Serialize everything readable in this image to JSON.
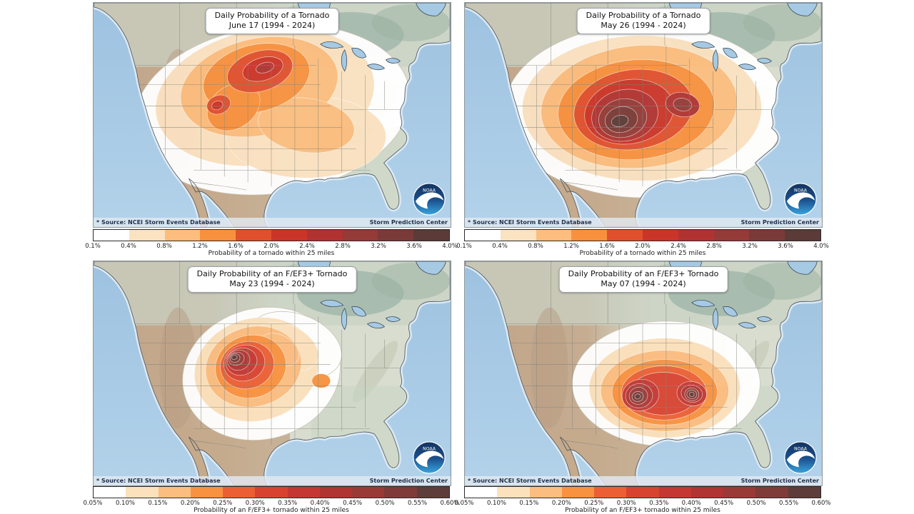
{
  "page": {
    "background": "#ffffff"
  },
  "logo": {
    "label": "NOAA"
  },
  "footer": {
    "source": "* Source: NCEI Storm Events Database",
    "credit": "Storm Prediction Center"
  },
  "colorbars": {
    "tornado": {
      "caption": "Probability of a tornado within 25 miles",
      "ticks": [
        "0.1%",
        "0.4%",
        "0.8%",
        "1.2%",
        "1.6%",
        "2.0%",
        "2.4%",
        "2.8%",
        "3.2%",
        "3.6%",
        "4.0%"
      ],
      "colors": [
        "#ffffff",
        "#fbe2c1",
        "#fcbd7e",
        "#f8913e",
        "#e1502d",
        "#cb3428",
        "#b03331",
        "#943a37",
        "#7a3a37",
        "#5b3b37"
      ]
    },
    "ef3": {
      "caption": "Probability of an F/EF3+ tornado within 25 miles",
      "ticks": [
        "0.05%",
        "0.10%",
        "0.15%",
        "0.20%",
        "0.25%",
        "0.30%",
        "0.35%",
        "0.40%",
        "0.45%",
        "0.50%",
        "0.55%",
        "0.60%"
      ],
      "colors": [
        "#ffffff",
        "#fce1bd",
        "#fcbd80",
        "#f99240",
        "#ec5f35",
        "#d84330",
        "#c43732",
        "#b03432",
        "#993a37",
        "#7e3b38",
        "#5e3c39"
      ]
    }
  },
  "maps": [
    {
      "title_line1": "Daily Probability of a Tornado",
      "title_line2": "June 17 (1994 - 2024)",
      "colorbar": "tornado",
      "contours": [
        [
          0,
          250,
          150,
          195,
          118,
          -8
        ],
        [
          1,
          240,
          132,
          155,
          95,
          -10
        ],
        [
          1,
          298,
          188,
          112,
          58,
          0
        ],
        [
          2,
          232,
          118,
          112,
          68,
          -12
        ],
        [
          2,
          298,
          172,
          68,
          38,
          8
        ],
        [
          3,
          228,
          106,
          76,
          47,
          -14
        ],
        [
          3,
          196,
          146,
          40,
          30,
          -35
        ],
        [
          4,
          233,
          96,
          47,
          28,
          -16
        ],
        [
          4,
          175,
          143,
          17,
          13,
          -20
        ],
        [
          5,
          237,
          93,
          29,
          16,
          -16
        ],
        [
          5,
          173,
          144,
          8,
          6,
          -20
        ],
        [
          6,
          240,
          91,
          13,
          7,
          -16
        ]
      ]
    },
    {
      "title_line1": "Daily Probability of a Tornado",
      "title_line2": "May 26 (1994 - 2024)",
      "colorbar": "tornado",
      "contours": [
        [
          0,
          252,
          152,
          198,
          122,
          0
        ],
        [
          1,
          248,
          148,
          168,
          102,
          0
        ],
        [
          2,
          244,
          146,
          138,
          86,
          -5
        ],
        [
          3,
          240,
          150,
          110,
          70,
          -5
        ],
        [
          4,
          236,
          150,
          84,
          56,
          -8
        ],
        [
          5,
          230,
          153,
          63,
          45,
          -10
        ],
        [
          6,
          224,
          158,
          47,
          36,
          -12
        ],
        [
          6,
          305,
          143,
          24,
          17,
          10
        ],
        [
          7,
          221,
          162,
          34,
          27,
          -12
        ],
        [
          7,
          305,
          143,
          13,
          9,
          10
        ],
        [
          8,
          219,
          164,
          23,
          18,
          -12
        ],
        [
          9,
          217,
          166,
          12,
          8,
          -12
        ]
      ]
    },
    {
      "title_line1": "Daily Probability of an F/EF3+ Tornado",
      "title_line2": "May 23 (1994 - 2024)",
      "colorbar": "ef3",
      "contours": [
        [
          0,
          235,
          158,
          112,
          92,
          -15
        ],
        [
          0,
          282,
          118,
          68,
          44,
          20
        ],
        [
          1,
          228,
          152,
          88,
          72,
          -15
        ],
        [
          1,
          270,
          120,
          48,
          30,
          25
        ],
        [
          2,
          224,
          148,
          68,
          56,
          -15
        ],
        [
          2,
          260,
          124,
          30,
          20,
          30
        ],
        [
          3,
          220,
          148,
          50,
          44,
          -15
        ],
        [
          3,
          319,
          168,
          13,
          10,
          0
        ],
        [
          4,
          215,
          146,
          38,
          33,
          -15
        ],
        [
          5,
          211,
          143,
          29,
          25,
          -15
        ],
        [
          6,
          207,
          141,
          22,
          19,
          -15
        ],
        [
          7,
          203,
          139,
          16,
          14,
          -15
        ],
        [
          8,
          200,
          137,
          11,
          9,
          -15
        ],
        [
          9,
          198,
          136,
          7,
          6,
          -15
        ],
        [
          10,
          197,
          135,
          4,
          3,
          -15
        ]
      ]
    },
    {
      "title_line1": "Daily Probability of an F/EF3+ Tornado",
      "title_line2": "May 07 (1994 - 2024)",
      "colorbar": "ef3",
      "contours": [
        [
          0,
          282,
          172,
          132,
          88,
          0
        ],
        [
          1,
          280,
          178,
          106,
          70,
          0
        ],
        [
          2,
          280,
          182,
          90,
          57,
          0
        ],
        [
          3,
          280,
          184,
          74,
          46,
          0
        ],
        [
          4,
          279,
          185,
          60,
          38,
          0
        ],
        [
          5,
          278,
          186,
          48,
          30,
          0
        ],
        [
          6,
          246,
          188,
          26,
          22,
          -10
        ],
        [
          6,
          318,
          186,
          21,
          17,
          10
        ],
        [
          7,
          244,
          189,
          19,
          17,
          -10
        ],
        [
          7,
          318,
          186,
          15,
          12,
          10
        ],
        [
          8,
          243,
          189,
          13,
          12,
          -10
        ],
        [
          8,
          318,
          187,
          10,
          9,
          10
        ],
        [
          9,
          242,
          190,
          8,
          7,
          -10
        ],
        [
          9,
          318,
          187,
          7,
          6,
          10
        ],
        [
          10,
          242,
          190,
          4,
          3.5,
          -10
        ],
        [
          10,
          318,
          187,
          3.5,
          3,
          10
        ]
      ]
    }
  ]
}
